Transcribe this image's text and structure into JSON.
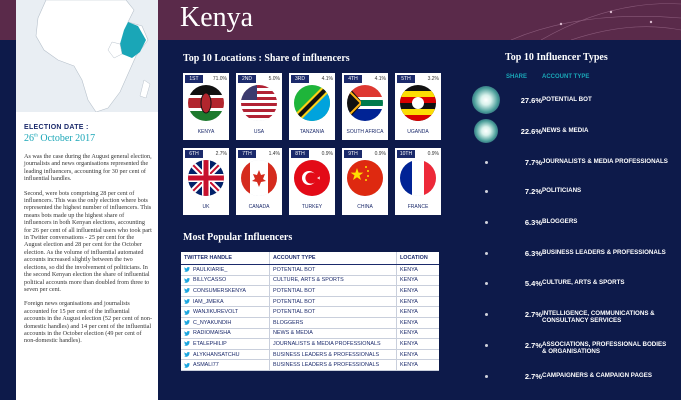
{
  "header": {
    "title": "Kenya"
  },
  "left": {
    "date_label": "ELECTION DATE :",
    "date_day": "26",
    "date_suffix": "th",
    "date_rest": "October 2017",
    "paragraphs": [
      "As was the case during the August general election, journalists and news organisations represented the leading influencers, accounting for 30 per cent of influential handles.",
      "Second, were bots comprising 28 per cent of influencers. This was the only election where bots represented the highest number of influencers. This means bots made up the highest share of influencers in both Kenyan elections, accounting for 26 per cent of all influential users who took part in Twitter conversations - 25 per cent for the August election and 28 per cent for the October election. As the volume of influential automated accounts increased slightly between the two elections, so did the involvement of politicians. In the second Kenyan election the share of influential political accounts more than doubled from three to seven per cent.",
      "Foreign news organisations and journalists accounted for 15 per cent of the influential accounts in the August election (52 per cent of non-domestic handles) and 14 per cent of the influential accounts in the October election (49 per cent of non-domestic handles)."
    ]
  },
  "locations": {
    "title": "Top 10 Locations : Share of influencers",
    "items": [
      {
        "rank": "1ST",
        "share": "71.0%",
        "country": "KENYA",
        "flag": "kenya"
      },
      {
        "rank": "2ND",
        "share": "5.0%",
        "country": "USA",
        "flag": "usa"
      },
      {
        "rank": "3RD",
        "share": "4.1%",
        "country": "TANZANIA",
        "flag": "tanzania"
      },
      {
        "rank": "4TH",
        "share": "4.1%",
        "country": "SOUTH AFRICA",
        "flag": "south-africa"
      },
      {
        "rank": "5TH",
        "share": "3.2%",
        "country": "UGANDA",
        "flag": "uganda"
      },
      {
        "rank": "6TH",
        "share": "2.7%",
        "country": "UK",
        "flag": "uk"
      },
      {
        "rank": "7TH",
        "share": "1.4%",
        "country": "CANADA",
        "flag": "canada"
      },
      {
        "rank": "8TH",
        "share": "0.9%",
        "country": "TURKEY",
        "flag": "turkey"
      },
      {
        "rank": "9TH",
        "share": "0.9%",
        "country": "CHINA",
        "flag": "china"
      },
      {
        "rank": "10TH",
        "share": "0.9%",
        "country": "FRANCE",
        "flag": "france"
      }
    ]
  },
  "influencers": {
    "title": "Most Popular Influencers",
    "columns": [
      "TWITTER HANDLE",
      "ACCOUNT TYPE",
      "LOCATION"
    ],
    "rows": [
      [
        "PAULKIARIE_",
        "POTENTIAL BOT",
        "KENYA"
      ],
      [
        "BILLYCASSO",
        "CULTURE, ARTS & SPORTS",
        "KENYA"
      ],
      [
        "CONSUMERSKENYA",
        "POTENTIAL BOT",
        "KENYA"
      ],
      [
        "IAM_JMEKA",
        "POTENTIAL BOT",
        "KENYA"
      ],
      [
        "WANJIKUREVOLT",
        "POTENTIAL BOT",
        "KENYA"
      ],
      [
        "C_NYAKUNDIH",
        "BLOGGERS",
        "KENYA"
      ],
      [
        "RADIOMAISHA",
        "NEWS & MEDIA",
        "KENYA"
      ],
      [
        "ETALEPHILIP",
        "JOURNALISTS & MEDIA PROFESSIONALS",
        "KENYA"
      ],
      [
        "ALYKHANSATCHU",
        "BUSINESS LEADERS & PROFESSIONALS",
        "KENYA"
      ],
      [
        "ASMALI77",
        "BUSINESS LEADERS & PROFESSIONALS",
        "KENYA"
      ]
    ]
  },
  "types": {
    "title": "Top 10 Influencer Types",
    "share_header": "SHARE",
    "type_header": "ACCOUNT TYPE"
  },
  "chart_data": [
    {
      "type": "bar",
      "title": "Top 10 Locations : Share of influencers",
      "categories": [
        "KENYA",
        "USA",
        "TANZANIA",
        "SOUTH AFRICA",
        "UGANDA",
        "UK",
        "CANADA",
        "TURKEY",
        "CHINA",
        "FRANCE"
      ],
      "values": [
        71.0,
        5.0,
        4.1,
        4.1,
        3.2,
        2.7,
        1.4,
        0.9,
        0.9,
        0.9
      ]
    },
    {
      "type": "bar",
      "title": "Top 10 Influencer Types",
      "categories": [
        "POTENTIAL BOT",
        "NEWS & MEDIA",
        "JOURNALISTS & MEDIA PROFESSIONALS",
        "POLITICIANS",
        "BLOGGERS",
        "BUSINESS LEADERS & PROFESSIONALS",
        "CULTURE, ARTS & SPORTS",
        "INTELLIGENCE, COMMUNICATIONS & CONSULTANCY SERVICES",
        "ASSOCIATIONS, PROFESSIONAL BODIES & ORGANISATIONS",
        "CAMPAIGNERS & CAMPAIGN PAGES"
      ],
      "values": [
        27.6,
        22.6,
        7.7,
        7.2,
        6.3,
        6.3,
        5.4,
        2.7,
        2.7,
        2.7
      ],
      "labels": [
        "27.6%",
        "22.6%",
        "7.7%",
        "7.2%",
        "6.3%",
        "6.3%",
        "5.4%",
        "2.7%",
        "2.7%",
        "2.7%"
      ]
    }
  ],
  "colors": {
    "navy": "#0d1a4a",
    "accent": "#1aa6b7",
    "header": "#5a2a4a",
    "dot": "#d9f2ec"
  }
}
